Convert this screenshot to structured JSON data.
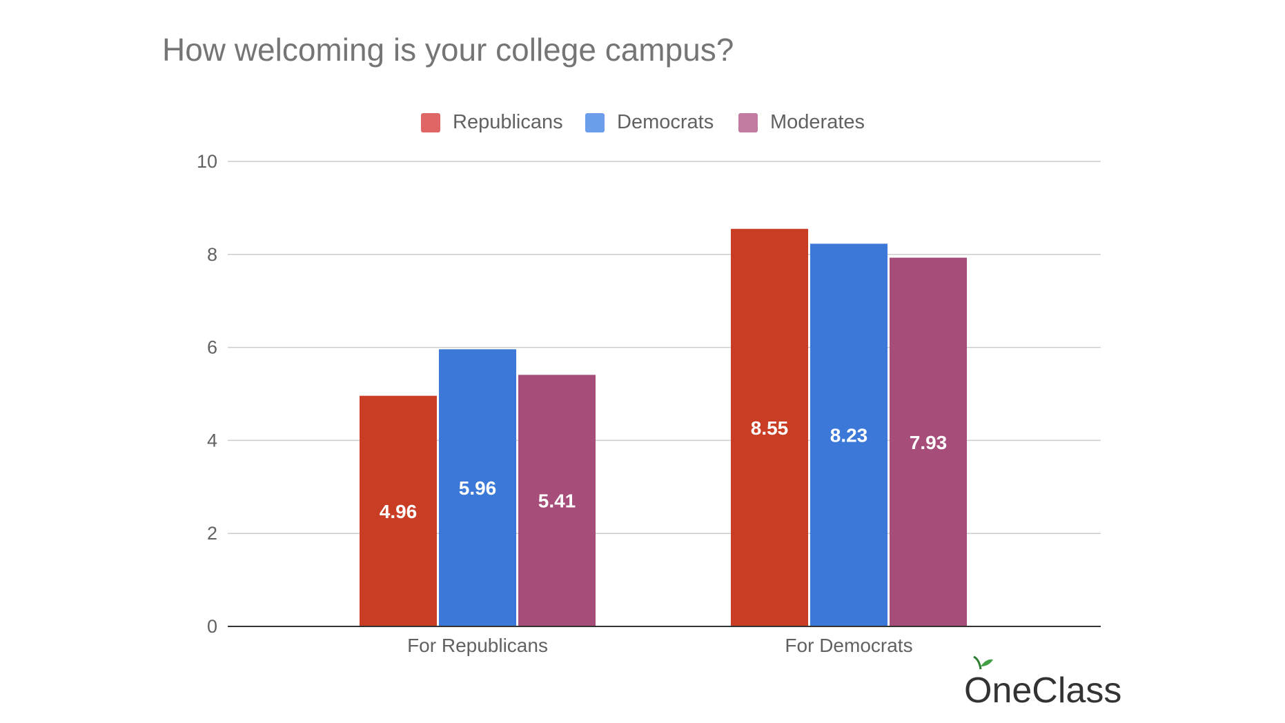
{
  "chart_data": {
    "type": "bar",
    "title": "How welcoming is your college campus?",
    "categories": [
      "For Republicans",
      "For Democrats"
    ],
    "series": [
      {
        "name": "Republicans",
        "color": "#c93d24",
        "legend_color": "#e06666",
        "values": [
          4.96,
          8.55
        ],
        "labels": [
          "4.96",
          "8.55"
        ]
      },
      {
        "name": "Democrats",
        "color": "#3b78d8",
        "legend_color": "#6d9eeb",
        "values": [
          5.96,
          8.23
        ],
        "labels": [
          "5.96",
          "8.23"
        ]
      },
      {
        "name": "Moderates",
        "color": "#a64d79",
        "legend_color": "#c27ba0",
        "values": [
          5.41,
          7.93
        ],
        "labels": [
          "5.41",
          "7.93"
        ]
      }
    ],
    "yticks": [
      "0",
      "2",
      "4",
      "6",
      "8",
      "10"
    ],
    "ylim": [
      0,
      10
    ],
    "grid": true,
    "legend_position": "top-center"
  },
  "logo": {
    "text": "OneClass",
    "icon": "apple-icon"
  }
}
